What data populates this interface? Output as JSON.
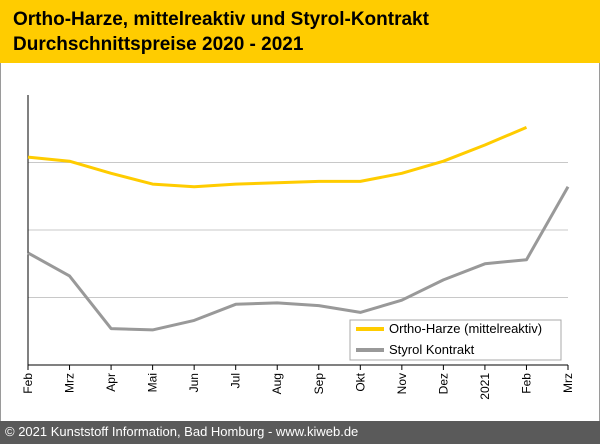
{
  "chart_data": {
    "type": "line",
    "title": "Ortho-Harze, mittelreaktiv und Styrol-Kontrakt",
    "subtitle": "Durchschnittspreise 2020 - 2021",
    "categories": [
      "Feb",
      "Mrz",
      "Apr",
      "Mai",
      "Jun",
      "Jul",
      "Aug",
      "Sep",
      "Okt",
      "Nov",
      "Dez",
      "2021",
      "Feb",
      "Mrz"
    ],
    "ylim": [
      0,
      100
    ],
    "grid": true,
    "legend_position": "bottom-right",
    "series": [
      {
        "name": "Ortho-Harze (mittelreaktiv)",
        "color": "#ffcc00",
        "values": [
          77,
          75.5,
          71,
          67,
          66,
          67,
          67.5,
          68,
          68,
          71,
          75.5,
          81.5,
          88,
          null
        ]
      },
      {
        "name": "Styrol Kontrakt",
        "color": "#999999",
        "values": [
          41.5,
          33,
          13.5,
          13,
          16.5,
          22.5,
          23,
          22,
          19.5,
          24,
          31.5,
          37.5,
          39,
          66
        ]
      }
    ]
  },
  "footer": {
    "text": "© 2021 Kunststoff Information, Bad Homburg - www.kiweb.de"
  }
}
